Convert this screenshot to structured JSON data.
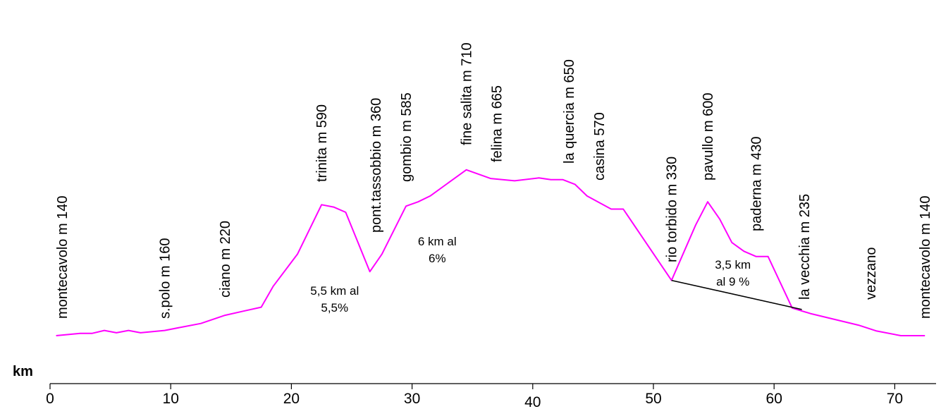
{
  "chart_data": {
    "type": "line",
    "x_unit_label": "km",
    "xlim": [
      0,
      73
    ],
    "ylim": [
      100,
      760
    ],
    "x_ticks": [
      "0",
      "10",
      "20",
      "30",
      "40",
      "50",
      "60",
      "70"
    ],
    "series": [
      {
        "color": "#ff00ff",
        "points": [
          [
            0.5,
            140
          ],
          [
            2.5,
            148
          ],
          [
            3.5,
            148
          ],
          [
            4.5,
            158
          ],
          [
            5.5,
            150
          ],
          [
            6.5,
            158
          ],
          [
            7.5,
            150
          ],
          [
            9.5,
            158
          ],
          [
            11,
            170
          ],
          [
            12.5,
            182
          ],
          [
            14.5,
            210
          ],
          [
            16,
            224
          ],
          [
            17.5,
            238
          ],
          [
            18.5,
            310
          ],
          [
            20.5,
            420
          ],
          [
            22.5,
            590
          ],
          [
            23.5,
            582
          ],
          [
            24.5,
            564
          ],
          [
            26.5,
            360
          ],
          [
            27.5,
            420
          ],
          [
            29.5,
            585
          ],
          [
            30.5,
            600
          ],
          [
            31.5,
            620
          ],
          [
            34.5,
            710
          ],
          [
            36.5,
            680
          ],
          [
            38.5,
            672
          ],
          [
            40.5,
            682
          ],
          [
            41.5,
            676
          ],
          [
            42.5,
            676
          ],
          [
            43.5,
            660
          ],
          [
            44.5,
            620
          ],
          [
            46.5,
            575
          ],
          [
            47.5,
            575
          ],
          [
            51.5,
            330
          ],
          [
            53.5,
            520
          ],
          [
            54.5,
            600
          ],
          [
            55.5,
            540
          ],
          [
            56.5,
            460
          ],
          [
            57.5,
            430
          ],
          [
            58.5,
            412
          ],
          [
            59.5,
            412
          ],
          [
            61.5,
            235
          ],
          [
            63,
            216
          ],
          [
            65,
            196
          ],
          [
            67,
            176
          ],
          [
            68.5,
            156
          ],
          [
            70.5,
            140
          ],
          [
            72.5,
            140
          ]
        ]
      },
      {
        "color": "#000000",
        "points": [
          [
            51.5,
            330
          ],
          [
            62.3,
            230
          ]
        ]
      }
    ],
    "place_labels": [
      {
        "text": "montecavolo m 140",
        "x": 1
      },
      {
        "text": "s.polo m 160",
        "x": 9.5
      },
      {
        "text": "ciano  m 220",
        "x": 14.5
      },
      {
        "text": "trinita m 590",
        "x": 22.5
      },
      {
        "text": "pont.tassobbio m 360",
        "x": 27
      },
      {
        "text": "gombio m 585",
        "x": 29.5
      },
      {
        "text": "fine salita m 710",
        "x": 34.5
      },
      {
        "text": "felina m 665",
        "x": 37
      },
      {
        "text": "la quercia m 650",
        "x": 43
      },
      {
        "text": "casina  570",
        "x": 45.5
      },
      {
        "text": "rio torbido m 330",
        "x": 51.5
      },
      {
        "text": "pavullo m 600",
        "x": 54.5
      },
      {
        "text": "paderna m 430",
        "x": 58.5
      },
      {
        "text": "la vecchia m 235",
        "x": 62.5
      },
      {
        "text": "vezzano",
        "x": 68
      },
      {
        "text": "montecavolo m 140",
        "x": 72.5
      }
    ],
    "annotations": [
      {
        "lines": [
          "5,5 km al",
          "5,5%"
        ],
        "x": 23,
        "y": 280
      },
      {
        "lines": [
          "6 km al",
          "6%"
        ],
        "x": 31.5,
        "y": 450
      },
      {
        "lines": [
          "3,5 km",
          "al 9 %"
        ],
        "x": 56,
        "y": 370
      }
    ]
  }
}
